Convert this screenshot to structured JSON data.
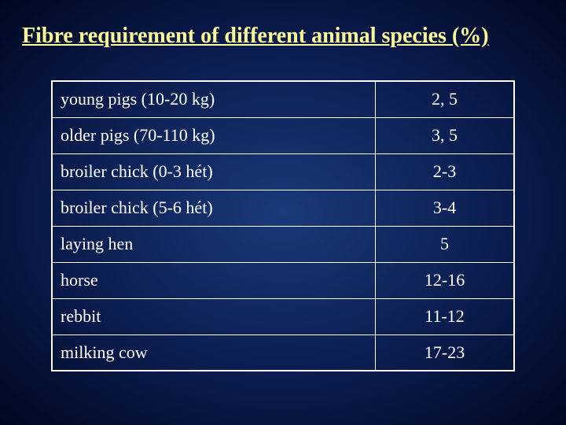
{
  "title": "Fibre requirement of different animal species (%)",
  "table": {
    "background_color": "transparent",
    "border_color": "#ffffff",
    "text_color": "#ffffff",
    "title_color": "#ffff99",
    "font_family": "Georgia, Times New Roman, serif",
    "title_fontsize": 28,
    "cell_fontsize": 22,
    "column_widths": [
      "70%",
      "30%"
    ],
    "columns": [
      "species",
      "percent"
    ],
    "rows": [
      {
        "species": "young pigs (10-20 kg)",
        "percent": "2, 5"
      },
      {
        "species": "older pigs (70-110 kg)",
        "percent": "3, 5"
      },
      {
        "species": "broiler chick (0-3 hét)",
        "percent": "2-3"
      },
      {
        "species": "broiler chick (5-6 hét)",
        "percent": "3-4"
      },
      {
        "species": "laying hen",
        "percent": "5"
      },
      {
        "species": "horse",
        "percent": "12-16"
      },
      {
        "species": "rebbit",
        "percent": "11-12"
      },
      {
        "species": "milking cow",
        "percent": "17-23"
      }
    ]
  }
}
